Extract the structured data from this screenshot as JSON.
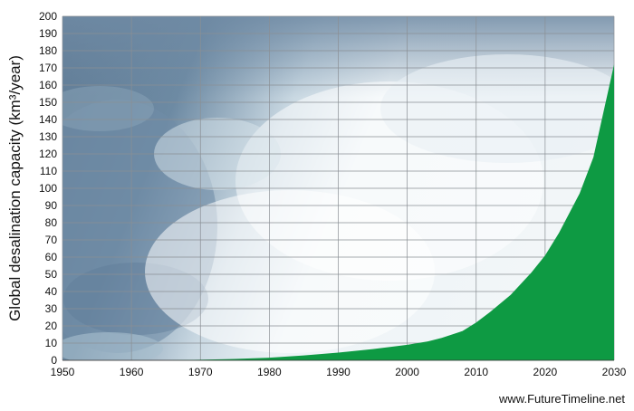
{
  "chart_data": {
    "type": "area",
    "title": "",
    "xlabel": "",
    "ylabel": "Global desalination capacity (km³/year)",
    "xlim": [
      1950,
      2030
    ],
    "ylim": [
      0,
      200
    ],
    "x_ticks": [
      1950,
      1960,
      1970,
      1980,
      1990,
      2000,
      2010,
      2020,
      2030
    ],
    "y_ticks": [
      0,
      10,
      20,
      30,
      40,
      50,
      60,
      70,
      80,
      90,
      100,
      110,
      120,
      130,
      140,
      150,
      160,
      170,
      180,
      190,
      200
    ],
    "grid": true,
    "series": [
      {
        "color": "#0e9a43",
        "x": [
          1950,
          1965,
          1970,
          1975,
          1980,
          1985,
          1990,
          1995,
          2000,
          2003,
          2005,
          2008,
          2010,
          2012,
          2015,
          2018,
          2020,
          2022,
          2025,
          2027,
          2030
        ],
        "y": [
          0,
          0,
          0.3,
          0.8,
          1.5,
          2.8,
          4.5,
          6.5,
          9,
          11,
          13,
          17,
          22,
          28,
          38,
          51,
          61,
          74,
          97,
          118,
          172
        ]
      }
    ],
    "background": "ocean surf photograph",
    "credit": "www.FutureTimeline.net"
  }
}
